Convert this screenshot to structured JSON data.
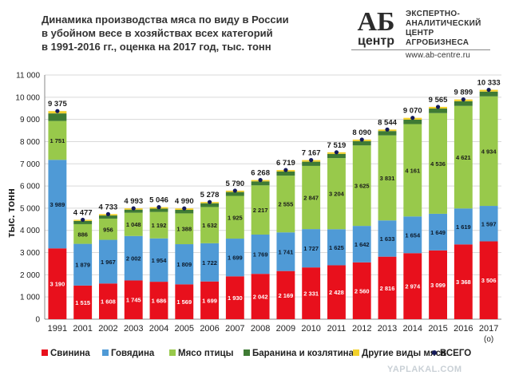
{
  "header": {
    "title_lines": [
      "Динамика производства мяса по виду в России",
      "в убойном весе в хозяйствах всех категорий",
      "в 1991-2016 гг., оценка на 2017 год, тыс. тонн"
    ],
    "logo_mark_top": "АБ",
    "logo_mark_bottom": "центр",
    "logo_lines": [
      "ЭКСПЕРТНО-",
      "АНАЛИТИЧЕСКИЙ",
      "ЦЕНТР",
      "АГРОБИЗНЕСА"
    ],
    "logo_url": "www.ab-centre.ru"
  },
  "watermark": "YAPLAKAL.COM",
  "colors": {
    "pork": "#e8101c",
    "beef": "#4f9ad6",
    "poultry": "#98c94b",
    "lamb": "#3f7b34",
    "other": "#f2d12b",
    "total": "#141a5a"
  },
  "chart_data": {
    "type": "bar",
    "stacked": true,
    "title": "Динамика производства мяса по виду в России в убойном весе в хозяйствах всех категорий в 1991-2016 гг., оценка на 2017 год, тыс. тонн",
    "ylabel": "тыс. тонн",
    "xlabel": "",
    "ylim": [
      0,
      11000
    ],
    "yticks": [
      "0",
      "1 000",
      "2 000",
      "3 000",
      "4 000",
      "5 000",
      "6 000",
      "7 000",
      "8 000",
      "9 000",
      "10 000",
      "11 000"
    ],
    "ytick_values": [
      0,
      1000,
      2000,
      3000,
      4000,
      5000,
      6000,
      7000,
      8000,
      9000,
      10000,
      11000
    ],
    "categories": [
      "1991",
      "2001",
      "2002",
      "2003",
      "2004",
      "2005",
      "2006",
      "2007",
      "2008",
      "2009",
      "2010",
      "2011",
      "2012",
      "2013",
      "2014",
      "2015",
      "2016",
      "2017"
    ],
    "x_note": "(о)",
    "series": [
      {
        "name": "Свинина",
        "key": "pork",
        "values": [
          3190,
          1515,
          1608,
          1745,
          1686,
          1569,
          1699,
          1930,
          2042,
          2169,
          2331,
          2428,
          2560,
          2816,
          2974,
          3099,
          3368,
          3506
        ],
        "labels": [
          "3 190",
          "1 515",
          "1 608",
          "1 745",
          "1 686",
          "1 569",
          "1 699",
          "1 930",
          "2 042",
          "2 169",
          "2 331",
          "2 428",
          "2 560",
          "2 816",
          "2 974",
          "3 099",
          "3 368",
          "3 506"
        ]
      },
      {
        "name": "Говядина",
        "key": "beef",
        "values": [
          3989,
          1879,
          1967,
          2002,
          1954,
          1809,
          1722,
          1699,
          1769,
          1741,
          1727,
          1625,
          1642,
          1633,
          1654,
          1649,
          1619,
          1597
        ],
        "labels": [
          "3 989",
          "1 879",
          "1 967",
          "2 002",
          "1 954",
          "1 809",
          "1 722",
          "1 699",
          "1 769",
          "1 741",
          "1 727",
          "1 625",
          "1 642",
          "1 633",
          "1 654",
          "1 649",
          "1 619",
          "1 597"
        ]
      },
      {
        "name": "Мясо птицы",
        "key": "poultry",
        "values": [
          1751,
          886,
          956,
          1048,
          1192,
          1388,
          1632,
          1925,
          2217,
          2555,
          2847,
          3204,
          3625,
          3831,
          4161,
          4536,
          4621,
          4934
        ],
        "labels": [
          "1 751",
          "886",
          "956",
          "1 048",
          "1 192",
          "1 388",
          "1 632",
          "1 925",
          "2 217",
          "2 555",
          "2 847",
          "3 204",
          "3 625",
          "3 831",
          "4 161",
          "4 536",
          "4 621",
          "4 934"
        ]
      },
      {
        "name": "Баранина и козлятина",
        "key": "lamb",
        "values": [
          340,
          145,
          140,
          140,
          150,
          160,
          170,
          175,
          180,
          185,
          190,
          190,
          195,
          196,
          200,
          205,
          210,
          215
        ]
      },
      {
        "name": "Другие виды мяса",
        "key": "other",
        "values": [
          105,
          52,
          62,
          58,
          64,
          64,
          55,
          61,
          60,
          69,
          72,
          72,
          68,
          68,
          81,
          76,
          81,
          81
        ]
      }
    ],
    "total": {
      "name": "ВСЕГО",
      "values": [
        9375,
        4477,
        4733,
        4993,
        5046,
        4990,
        5278,
        5790,
        6268,
        6719,
        7167,
        7519,
        8090,
        8544,
        9070,
        9565,
        9899,
        10333
      ],
      "labels": [
        "9 375",
        "4 477",
        "4 733",
        "4 993",
        "5 046",
        "4 990",
        "5 278",
        "5 790",
        "6 268",
        "6 719",
        "7 167",
        "7 519",
        "8 090",
        "8 544",
        "9 070",
        "9 565",
        "9 899",
        "10 333"
      ]
    },
    "legend": {
      "placement": "bottom",
      "items": [
        {
          "label": "Свинина",
          "key": "pork",
          "marker": "square"
        },
        {
          "label": "Говядина",
          "key": "beef",
          "marker": "square"
        },
        {
          "label": "Мясо птицы",
          "key": "poultry",
          "marker": "square"
        },
        {
          "label": "Баранина и козлятина",
          "key": "lamb",
          "marker": "square"
        },
        {
          "label": "Другие виды мяса",
          "key": "other",
          "marker": "square"
        },
        {
          "label": "ВСЕГО",
          "key": "total",
          "marker": "dot"
        }
      ]
    }
  }
}
